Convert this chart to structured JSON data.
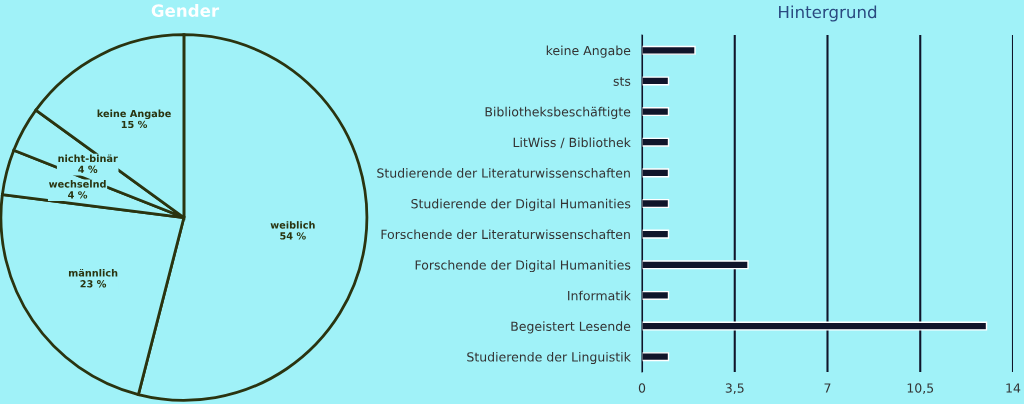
{
  "chart_data": [
    {
      "type": "pie",
      "title": "Gender",
      "categories": [
        "weiblich",
        "männlich",
        "wechselnd",
        "nicht-binär",
        "keine Angabe"
      ],
      "values": [
        54,
        23,
        4,
        4,
        15
      ],
      "value_labels": [
        "54 %",
        "23 %",
        "4 %",
        "4 %",
        "15 %"
      ],
      "colors": [
        "#a0f2f8",
        "#a0f2f8",
        "#a0f2f8",
        "#a0f2f8",
        "#a0f2f8"
      ]
    },
    {
      "type": "bar",
      "orientation": "horizontal",
      "title": "Hintergrund",
      "categories": [
        "keine Angabe",
        "sts",
        "Bibliotheksbeschäftigte",
        "LitWiss / Bibliothek",
        "Studierende der Literaturwissenschaften",
        "Studierende der Digital Humanities",
        "Forschende der Literaturwissenschaften",
        "Forschende der Digital Humanities",
        "Informatik",
        "Begeistert Lesende",
        "Studierende der Linguistik"
      ],
      "values": [
        2,
        1,
        1,
        1,
        1,
        1,
        1,
        4,
        1,
        13,
        1
      ],
      "color": "#10152a",
      "xlim": [
        0,
        14
      ],
      "xticks": [
        0,
        {
          "value": 3.5,
          "label": "3,5"
        },
        7,
        {
          "value": 10.5,
          "label": "10,5"
        },
        14
      ],
      "grid": "x"
    }
  ]
}
